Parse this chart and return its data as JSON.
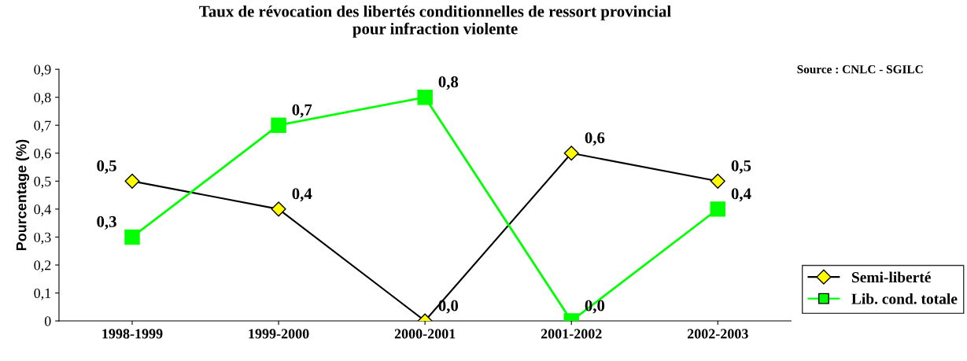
{
  "chart_data": {
    "type": "line",
    "title": "Taux de révocation des libertés conditionnelles de ressort provincial\npour infraction violente",
    "ylabel": "Pourcentage (%)",
    "categories": [
      "1998-1999",
      "1999-2000",
      "2000-2001",
      "2001-2002",
      "2002-2003"
    ],
    "series": [
      {
        "name": "Semi-liberté",
        "color": "#000000",
        "colors": [
          "#ffff00",
          "#ffff00",
          "#ffff00",
          "#ffff00",
          "#ffff00"
        ],
        "marker": "diamond",
        "values": [
          0.5,
          0.4,
          0.0,
          0.6,
          0.5
        ],
        "value_labels": [
          "0,5",
          "0,4",
          "0,0",
          "0,6",
          "0,5"
        ]
      },
      {
        "name": "Lib. cond. totale",
        "color": "#00ff00",
        "marker": "square",
        "values": [
          0.3,
          0.7,
          0.8,
          0.0,
          0.4
        ],
        "value_labels": [
          "0,3",
          "0,7",
          "0,8",
          "0,0",
          "0,4"
        ]
      }
    ],
    "ylim": [
      0,
      0.9
    ],
    "yticks": [
      {
        "value": 0,
        "label": "0"
      },
      {
        "value": 0.1,
        "label": "0,1"
      },
      {
        "value": 0.2,
        "label": "0,2"
      },
      {
        "value": 0.3,
        "label": "0,3"
      },
      {
        "value": 0.4,
        "label": "0,4"
      },
      {
        "value": 0.5,
        "label": "0,5"
      },
      {
        "value": 0.6,
        "label": "0,6"
      },
      {
        "value": 0.7,
        "label": "0,7"
      },
      {
        "value": 0.8,
        "label": "0,8"
      },
      {
        "value": 0.9,
        "label": "0,9"
      }
    ],
    "annotations": [
      "Source : CNLC - SGILC"
    ],
    "legend": "right",
    "grid": false,
    "line_style": "solid"
  }
}
